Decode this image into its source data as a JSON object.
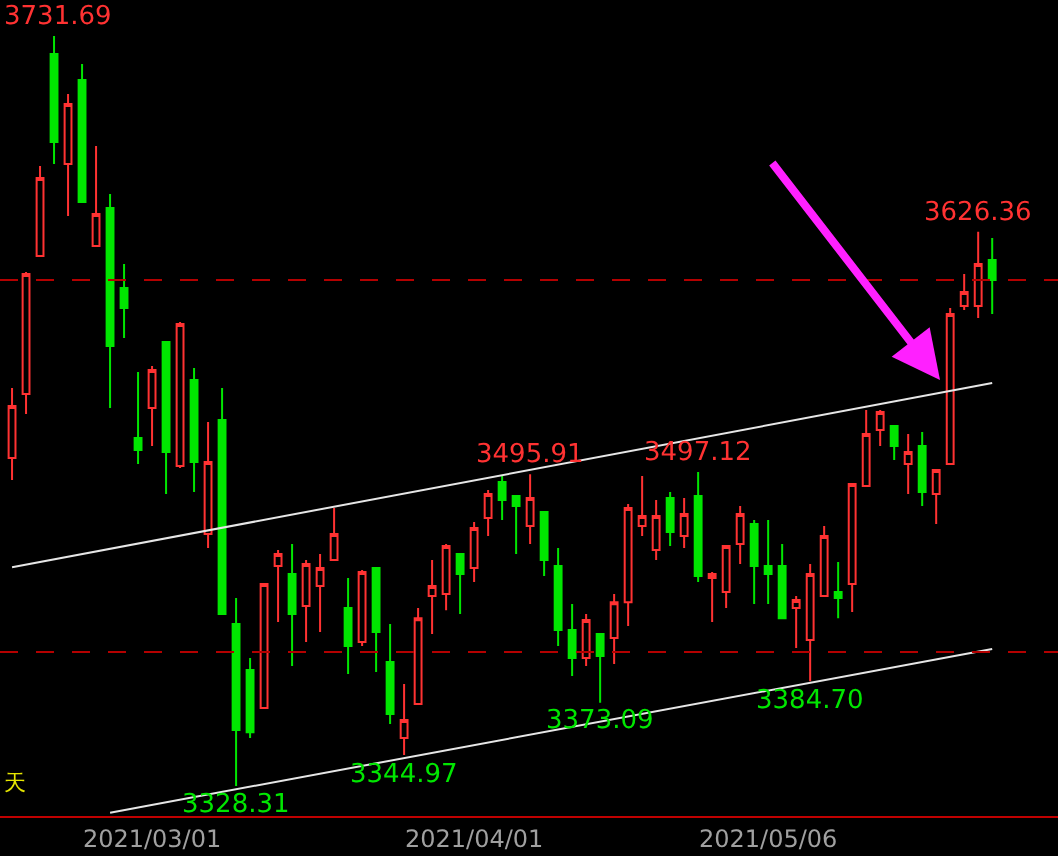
{
  "chart_data": {
    "type": "candlestick",
    "categories": [
      null,
      null,
      null,
      null,
      null,
      null,
      null,
      null,
      null,
      null,
      "2021/03/01",
      null,
      null,
      null,
      null,
      null,
      null,
      null,
      null,
      null,
      null,
      null,
      null,
      null,
      null,
      null,
      null,
      null,
      null,
      null,
      null,
      null,
      null,
      "2021/04/01",
      null,
      null,
      null,
      null,
      null,
      null,
      null,
      null,
      null,
      null,
      null,
      null,
      null,
      null,
      null,
      null,
      null,
      null,
      null,
      null,
      "2021/05/06",
      null,
      null,
      null,
      null,
      null,
      null,
      null,
      null,
      null,
      null,
      null,
      null,
      null,
      null,
      null,
      null
    ],
    "ohlc": [
      [
        3504.7,
        3542.4,
        3492.9,
        3532.7
      ],
      [
        3539.1,
        3604.7,
        3528.4,
        3603.7
      ],
      [
        3613.4,
        3661.8,
        3613.4,
        3655.3
      ],
      [
        3722.0,
        3731.69,
        3662.8,
        3674.7
      ],
      [
        3662.8,
        3700.5,
        3634.9,
        3695.1
      ],
      [
        3708.0,
        3716.6,
        3642.4,
        3642.4
      ],
      [
        3618.7,
        3672.5,
        3618.7,
        3635.9
      ],
      [
        3639.2,
        3646.7,
        3531.6,
        3565.0
      ],
      [
        3596.1,
        3609.1,
        3569.3,
        3585.4
      ],
      [
        3515.5,
        3551.0,
        3501.5,
        3509.0
      ],
      [
        3531.6,
        3554.2,
        3511.2,
        3552.0
      ],
      [
        3567.1,
        3567.1,
        3485.4,
        3507.9
      ],
      [
        3500.4,
        3577.9,
        3499.3,
        3576.8
      ],
      [
        3546.7,
        3553.1,
        3486.4,
        3502.6
      ],
      [
        3463.8,
        3524.1,
        3456.3,
        3502.6
      ],
      [
        3525.1,
        3542.4,
        3420.8,
        3420.8
      ],
      [
        3415.4,
        3429.4,
        3328.31,
        3358.4
      ],
      [
        3390.7,
        3397.2,
        3354.1,
        3357.3
      ],
      [
        3370.3,
        3436.9,
        3370.3,
        3436.9
      ],
      [
        3446.6,
        3455.2,
        3416.5,
        3453.1
      ],
      [
        3442.3,
        3458.4,
        3392.8,
        3420.8
      ],
      [
        3425.1,
        3449.8,
        3405.8,
        3447.7
      ],
      [
        3435.9,
        3453.1,
        3411.1,
        3445.5
      ],
      [
        3449.8,
        3477.8,
        3449.8,
        3463.8
      ],
      [
        3424.0,
        3440.2,
        3388.5,
        3403.6
      ],
      [
        3405.8,
        3444.5,
        3403.6,
        3443.4
      ],
      [
        3445.5,
        3445.5,
        3389.6,
        3411.1
      ],
      [
        3395.0,
        3415.4,
        3361.7,
        3367.1
      ],
      [
        3354.1,
        3383.2,
        3344.97,
        3363.8
      ],
      [
        3372.4,
        3424.0,
        3372.4,
        3418.6
      ],
      [
        3430.5,
        3449.8,
        3410.1,
        3435.9
      ],
      [
        3431.6,
        3458.4,
        3422.9,
        3457.4
      ],
      [
        3453.1,
        3453.1,
        3420.8,
        3442.3
      ],
      [
        3445.5,
        3470.3,
        3438.0,
        3467.1
      ],
      [
        3472.4,
        3487.5,
        3462.8,
        3485.4
      ],
      [
        3491.8,
        3495.0,
        3471.4,
        3482.1
      ],
      [
        3484.3,
        3484.3,
        3453.1,
        3478.9
      ],
      [
        3468.1,
        3495.91,
        3458.4,
        3483.2
      ],
      [
        3475.7,
        3475.7,
        3441.3,
        3449.8
      ],
      [
        3446.6,
        3456.3,
        3403.6,
        3412.2
      ],
      [
        3412.2,
        3426.2,
        3387.5,
        3397.2
      ],
      [
        3397.2,
        3420.8,
        3392.8,
        3417.6
      ],
      [
        3410.1,
        3410.1,
        3373.09,
        3398.2
      ],
      [
        3407.9,
        3431.6,
        3393.9,
        3427.2
      ],
      [
        3427.2,
        3480.0,
        3414.4,
        3477.8
      ],
      [
        3468.1,
        3495.0,
        3462.8,
        3473.5
      ],
      [
        3455.2,
        3482.1,
        3449.8,
        3473.5
      ],
      [
        3483.2,
        3486.4,
        3457.4,
        3464.9
      ],
      [
        3462.8,
        3483.2,
        3456.3,
        3474.6
      ],
      [
        3484.3,
        3497.12,
        3438.0,
        3441.3
      ],
      [
        3440.2,
        3443.4,
        3416.5,
        3442.3
      ],
      [
        3432.6,
        3457.4,
        3424.0,
        3457.4
      ],
      [
        3458.4,
        3478.9,
        3447.7,
        3474.6
      ],
      [
        3469.2,
        3471.4,
        3426.2,
        3446.6
      ],
      [
        3446.6,
        3471.4,
        3426.2,
        3442.3
      ],
      [
        3446.6,
        3458.4,
        3418.6,
        3418.6
      ],
      [
        3424.0,
        3430.5,
        3402.5,
        3428.3
      ],
      [
        3406.8,
        3447.7,
        3384.7,
        3442.3
      ],
      [
        3430.5,
        3468.1,
        3430.5,
        3462.8
      ],
      [
        3432.6,
        3448.8,
        3418.6,
        3429.4
      ],
      [
        3436.9,
        3490.7,
        3421.9,
        3490.7
      ],
      [
        3489.7,
        3530.5,
        3489.7,
        3517.6
      ],
      [
        3519.8,
        3530.5,
        3511.2,
        3529.4
      ],
      [
        3521.9,
        3521.9,
        3503.6,
        3511.2
      ],
      [
        3501.5,
        3517.6,
        3485.4,
        3507.9
      ],
      [
        3511.2,
        3518.7,
        3478.9,
        3486.4
      ],
      [
        3485.4,
        3498.3,
        3469.2,
        3498.3
      ],
      [
        3501.5,
        3585.4,
        3501.5,
        3582.2
      ],
      [
        3586.5,
        3603.7,
        3584.3,
        3594.0
      ],
      [
        3586.5,
        3626.36,
        3580.0,
        3609.1
      ],
      [
        3611.2,
        3623.0,
        3582.2,
        3600.4
      ]
    ],
    "colors": [
      "#ff3232",
      "#ff3232",
      "#ff3232",
      "#00e600",
      "#ff3232",
      "#00e600",
      "#ff3232",
      "#00e600",
      "#00e600",
      "#00e600",
      "#ff3232",
      "#00e600",
      "#ff3232",
      "#00e600",
      "#ff3232",
      "#00e600",
      "#00e600",
      "#00e600",
      "#ff3232",
      "#ff3232",
      "#00e600",
      "#ff3232",
      "#ff3232",
      "#ff3232",
      "#00e600",
      "#ff3232",
      "#00e600",
      "#00e600",
      "#ff3232",
      "#ff3232",
      "#ff3232",
      "#ff3232",
      "#00e600",
      "#ff3232",
      "#ff3232",
      "#00e600",
      "#00e600",
      "#ff3232",
      "#00e600",
      "#00e600",
      "#00e600",
      "#ff3232",
      "#00e600",
      "#ff3232",
      "#ff3232",
      "#ff3232",
      "#ff3232",
      "#00e600",
      "#ff3232",
      "#00e600",
      "#ff3232",
      "#ff3232",
      "#ff3232",
      "#00e600",
      "#00e600",
      "#00e600",
      "#ff3232",
      "#ff3232",
      "#ff3232",
      "#00e600",
      "#ff3232",
      "#ff3232",
      "#ff3232",
      "#00e600",
      "#ff3232",
      "#00e600",
      "#ff3232",
      "#ff3232",
      "#ff3232",
      "#ff3232",
      "#00e600"
    ],
    "series": [
      {
        "type": "line",
        "color": "#e6e6e6",
        "values": [
          3446,
          null,
          null,
          null,
          null,
          null,
          null,
          null,
          null,
          null,
          null,
          null,
          null,
          null,
          null,
          null,
          null,
          null,
          null,
          null,
          null,
          null,
          null,
          null,
          null,
          null,
          null,
          null,
          null,
          null,
          null,
          null,
          null,
          null,
          null,
          null,
          null,
          null,
          null,
          null,
          null,
          null,
          null,
          null,
          null,
          null,
          null,
          null,
          null,
          null,
          null,
          null,
          null,
          null,
          null,
          null,
          null,
          null,
          null,
          null,
          null,
          null,
          null,
          null,
          null,
          null,
          null,
          null,
          null,
          null,
          3545
        ]
      },
      {
        "type": "line",
        "color": "#e6e6e6",
        "values": [
          null,
          null,
          null,
          null,
          null,
          null,
          null,
          3314,
          null,
          null,
          null,
          null,
          null,
          null,
          null,
          null,
          null,
          null,
          null,
          null,
          null,
          null,
          null,
          null,
          null,
          null,
          null,
          null,
          null,
          null,
          null,
          null,
          null,
          null,
          null,
          null,
          null,
          null,
          null,
          null,
          null,
          null,
          null,
          null,
          null,
          null,
          null,
          null,
          null,
          null,
          null,
          null,
          null,
          null,
          null,
          null,
          null,
          null,
          null,
          null,
          null,
          null,
          null,
          null,
          null,
          null,
          null,
          null,
          null,
          null,
          3402
        ]
      }
    ],
    "ref_lines": [
      {
        "axis": "y",
        "value": 3600.4,
        "color": "#b40000",
        "line_style": "dashed"
      },
      {
        "axis": "y",
        "value": 3400.4,
        "color": "#b40000",
        "line_style": "dashed"
      }
    ],
    "annotations": [
      {
        "text": "3731.69",
        "y": 3731.69
      },
      {
        "text": "3328.31",
        "y": 3328.31
      },
      {
        "text": "3344.97",
        "y": 3344.97
      },
      {
        "text": "3495.91",
        "y": 3495.91
      },
      {
        "text": "3373.09",
        "y": 3373.09
      },
      {
        "text": "3497.12",
        "y": 3497.12
      },
      {
        "text": "3384.70",
        "y": 3384.7
      },
      {
        "text": "3626.36",
        "y": 3626.36
      },
      "天"
    ],
    "ylim": [
      3312.2,
      3751.0
    ],
    "tick_labels": "x"
  }
}
